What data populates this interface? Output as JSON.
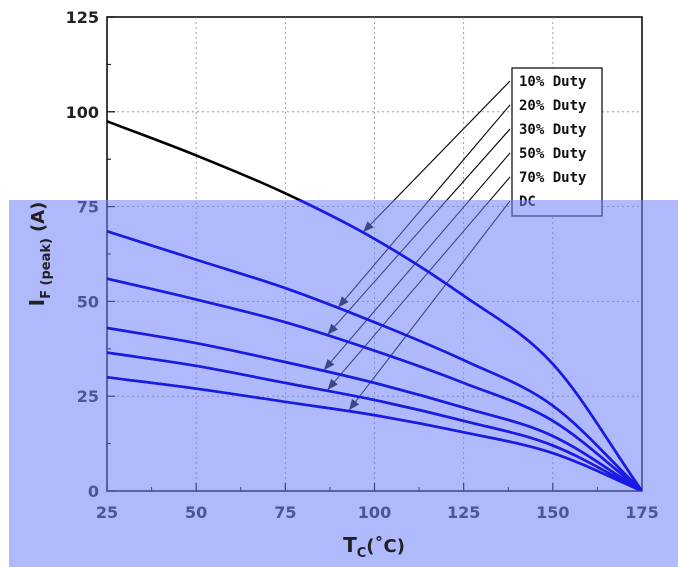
{
  "chart_data": {
    "type": "line",
    "xlabel": "T",
    "xlabel_sub": "C",
    "xlabel_unit": "(˚C)",
    "ylabel": "I",
    "ylabel_sub": "F (peak)",
    "ylabel_unit": "(A)",
    "xlim": [
      25,
      175
    ],
    "ylim": [
      0,
      125
    ],
    "x_ticks": [
      "25",
      "50",
      "75",
      "100",
      "125",
      "150",
      "175"
    ],
    "y_ticks": [
      "0",
      "25",
      "50",
      "75",
      "100",
      "125"
    ],
    "grid": true,
    "legend_position": "top-right",
    "x": [
      25,
      50,
      75,
      100,
      125,
      150,
      175
    ],
    "series": [
      {
        "name": "10% Duty",
        "values": [
          97.5,
          88.5,
          78.5,
          66.5,
          51.5,
          33.5,
          0
        ]
      },
      {
        "name": "20% Duty",
        "values": [
          68.5,
          61.0,
          53.5,
          44.5,
          34.5,
          22.5,
          0
        ]
      },
      {
        "name": "30% Duty",
        "values": [
          56.0,
          50.5,
          44.5,
          37.0,
          28.5,
          18.5,
          0
        ]
      },
      {
        "name": "50% Duty",
        "values": [
          43.0,
          39.0,
          34.0,
          28.5,
          22.0,
          14.5,
          0
        ]
      },
      {
        "name": "70% Duty",
        "values": [
          36.5,
          33.0,
          28.5,
          24.0,
          18.5,
          12.0,
          0
        ]
      },
      {
        "name": "DC",
        "values": [
          30.0,
          27.0,
          23.5,
          20.0,
          15.5,
          10.0,
          0
        ]
      }
    ],
    "overlay_color": "#6f7ff7",
    "line_color_top": "#000000",
    "line_color_under": "#1a1ae6"
  }
}
